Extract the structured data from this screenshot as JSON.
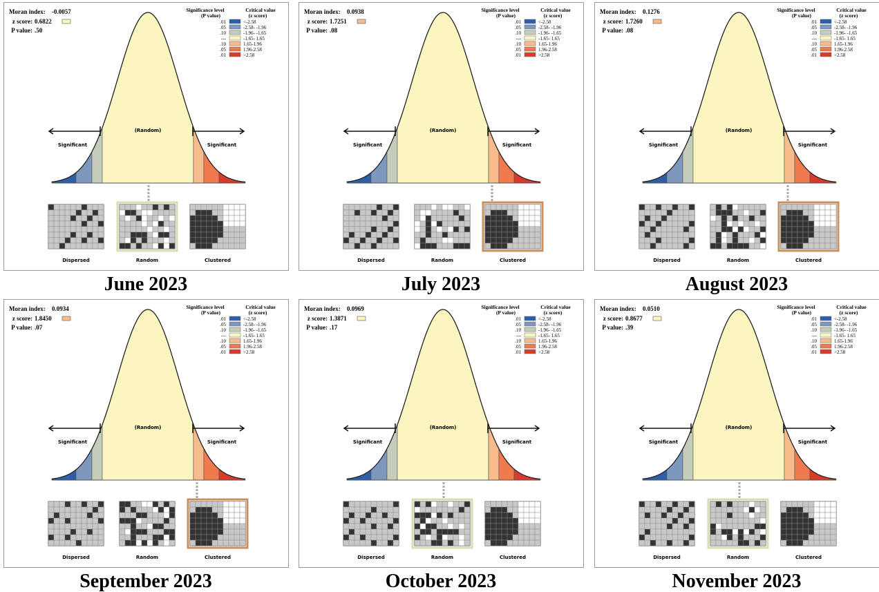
{
  "labels": {
    "moran": "Moran index:",
    "z": "z score:",
    "p": "P value:",
    "significant": "Significant",
    "random_zone": "(Random)",
    "patterns": [
      "Dispersed",
      "Random",
      "Clustered"
    ]
  },
  "legend": {
    "sig_header": "Significance level",
    "p_header": "(P value)",
    "crit_header": "Critical value",
    "z_header": "(z score)",
    "rows": [
      {
        "p": ".01",
        "z": "<-2.58",
        "color": "#2f5ea8"
      },
      {
        "p": ".05",
        "z": "-2.58- -1.96",
        "color": "#7d97bd"
      },
      {
        "p": ".10",
        "z": "-1.96- -1.65",
        "color": "#c3cdb9"
      },
      {
        "p": "---",
        "z": "-1.65- 1.65",
        "color": "#fbf5c0"
      },
      {
        "p": ".10",
        "z": "1.65-1.96",
        "color": "#f7bc8c"
      },
      {
        "p": ".05",
        "z": "1.96-2.58",
        "color": "#ee7a4e"
      },
      {
        "p": ".01",
        "z": ">2.58",
        "color": "#d93b2b"
      }
    ]
  },
  "panels": [
    {
      "title": "June 2023",
      "moran_index": "-0.0057",
      "z_score": "0.6822",
      "p_value": ".50",
      "class": 3,
      "selected": 1
    },
    {
      "title": "July 2023",
      "moran_index": "0.0938",
      "z_score": "1.7251",
      "p_value": ".08",
      "class": 4,
      "selected": 2
    },
    {
      "title": "August 2023",
      "moran_index": "0.1276",
      "z_score": "1.7260",
      "p_value": ".08",
      "class": 4,
      "selected": 2
    },
    {
      "title": "September 2023",
      "moran_index": "0.0934",
      "z_score": "1.8450",
      "p_value": ".07",
      "class": 4,
      "selected": 2
    },
    {
      "title": "October 2023",
      "moran_index": "0.0969",
      "z_score": "1.3871",
      "p_value": ".17",
      "class": 3,
      "selected": 1
    },
    {
      "title": "November 2023",
      "moran_index": "0.0510",
      "z_score": "0.8677",
      "p_value": ".39",
      "class": 3,
      "selected": 1
    }
  ]
}
